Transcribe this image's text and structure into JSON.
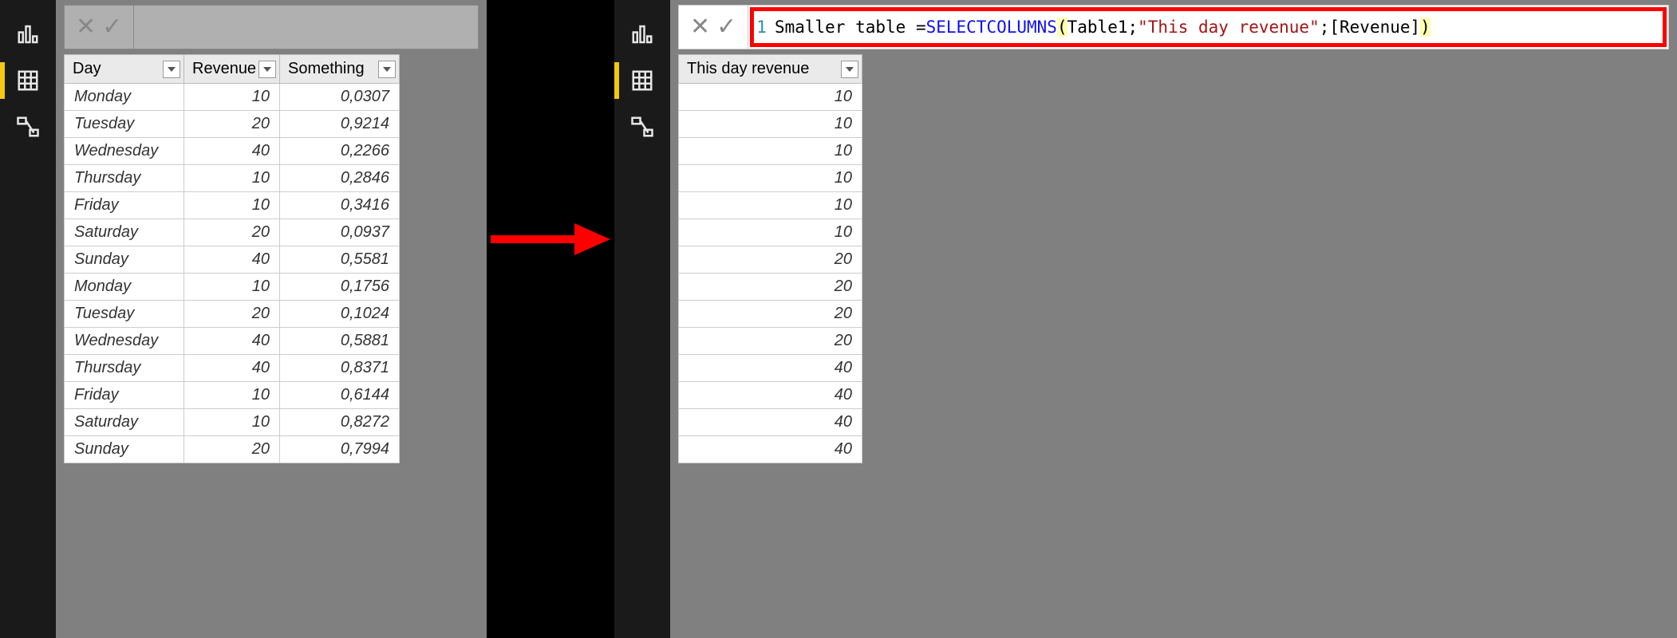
{
  "left": {
    "nav": {
      "activeIndex": 1
    },
    "formula": {
      "empty": true
    },
    "table": {
      "columns": [
        "Day",
        "Revenue",
        "Something"
      ],
      "colClasses": [
        "col-day",
        "col-rev num",
        "col-som num"
      ],
      "alignNumeric": [
        false,
        true,
        true
      ],
      "rows": [
        [
          "Monday",
          "10",
          "0,0307"
        ],
        [
          "Tuesday",
          "20",
          "0,9214"
        ],
        [
          "Wednesday",
          "40",
          "0,2266"
        ],
        [
          "Thursday",
          "10",
          "0,2846"
        ],
        [
          "Friday",
          "10",
          "0,3416"
        ],
        [
          "Saturday",
          "20",
          "0,0937"
        ],
        [
          "Sunday",
          "40",
          "0,5581"
        ],
        [
          "Monday",
          "10",
          "0,1756"
        ],
        [
          "Tuesday",
          "20",
          "0,1024"
        ],
        [
          "Wednesday",
          "40",
          "0,5881"
        ],
        [
          "Thursday",
          "40",
          "0,8371"
        ],
        [
          "Friday",
          "10",
          "0,6144"
        ],
        [
          "Saturday",
          "10",
          "0,8272"
        ],
        [
          "Sunday",
          "20",
          "0,7994"
        ]
      ]
    }
  },
  "right": {
    "nav": {
      "activeIndex": 1
    },
    "formula": {
      "empty": false,
      "highlight": true,
      "lineNo": "1",
      "tokens": [
        {
          "t": "Smaller table = ",
          "c": "tk-plain"
        },
        {
          "t": "SELECTCOLUMNS",
          "c": "tk-func"
        },
        {
          "t": "(",
          "c": "tk-paren"
        },
        {
          "t": "Table1;",
          "c": "tk-plain"
        },
        {
          "t": "\"This day revenue\"",
          "c": "tk-str"
        },
        {
          "t": ";",
          "c": "tk-plain"
        },
        {
          "t": "[Revenue]",
          "c": "tk-plain"
        },
        {
          "t": ")",
          "c": "tk-paren"
        }
      ]
    },
    "table": {
      "columns": [
        "This day revenue"
      ],
      "alignNumeric": [
        true
      ],
      "rows": [
        [
          "10"
        ],
        [
          "10"
        ],
        [
          "10"
        ],
        [
          "10"
        ],
        [
          "10"
        ],
        [
          "10"
        ],
        [
          "20"
        ],
        [
          "20"
        ],
        [
          "20"
        ],
        [
          "20"
        ],
        [
          "40"
        ],
        [
          "40"
        ],
        [
          "40"
        ],
        [
          "40"
        ]
      ]
    }
  },
  "style": {
    "accent": "#f2c811",
    "arrowColor": "#ff0000",
    "highlightBorder": "#ff0000"
  }
}
